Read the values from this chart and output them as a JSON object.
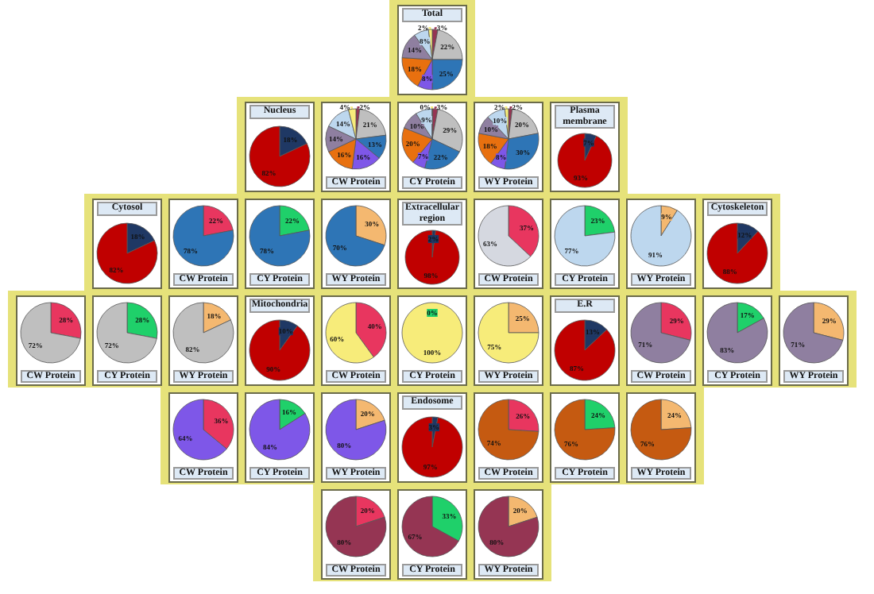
{
  "chart_data": [
    {
      "type": "pie",
      "title": "Total",
      "categories": [
        null,
        null,
        null,
        null,
        null,
        null,
        null,
        null
      ],
      "values": [
        3,
        22,
        25,
        8,
        18,
        14,
        8,
        2
      ],
      "value_labels": [
        "3%",
        "22%",
        "25%",
        "8%",
        "18%",
        "14%",
        "8%",
        "2%"
      ],
      "colors": [
        "#953553",
        "#bfbfbf",
        "#2e75b6",
        "#7e57e8",
        "#e8700f",
        "#8f7fa0",
        "#bdd7ee",
        "#f7ec7a"
      ]
    },
    {
      "type": "pie",
      "title": "Nucleus",
      "categories": [
        null,
        null
      ],
      "values": [
        18,
        82
      ],
      "value_labels": [
        "18%",
        "82%"
      ],
      "colors": [
        "#1f3864",
        "#c00000"
      ]
    },
    {
      "type": "pie",
      "xlabel": "CW Protein",
      "categories": [
        null,
        null,
        null,
        null,
        null,
        null,
        null,
        null
      ],
      "values": [
        2,
        21,
        13,
        16,
        16,
        14,
        14,
        4
      ],
      "value_labels": [
        "2%",
        "21%",
        "13%",
        "16%",
        "16%",
        "14%",
        "14%",
        "4%"
      ],
      "colors": [
        "#953553",
        "#bfbfbf",
        "#2e75b6",
        "#7e57e8",
        "#e8700f",
        "#8f7fa0",
        "#bdd7ee",
        "#f7ec7a"
      ]
    },
    {
      "type": "pie",
      "xlabel": "CY Protein",
      "categories": [
        null,
        null,
        null,
        null,
        null,
        null,
        null,
        null
      ],
      "values": [
        3,
        29,
        22,
        7,
        20,
        10,
        9,
        0
      ],
      "value_labels": [
        "3%",
        "29%",
        "22%",
        "7%",
        "20%",
        "10%",
        "9%",
        "0%"
      ],
      "colors": [
        "#953553",
        "#bfbfbf",
        "#2e75b6",
        "#7e57e8",
        "#e8700f",
        "#8f7fa0",
        "#bdd7ee",
        "#f7ec7a"
      ]
    },
    {
      "type": "pie",
      "xlabel": "WY Protein",
      "categories": [
        null,
        null,
        null,
        null,
        null,
        null,
        null,
        null
      ],
      "values": [
        2,
        20,
        30,
        8,
        18,
        10,
        10,
        2
      ],
      "value_labels": [
        "2%",
        "20%",
        "30%",
        "8%",
        "18%",
        "10%",
        "10%",
        "2%"
      ],
      "colors": [
        "#953553",
        "#bfbfbf",
        "#2e75b6",
        "#7e57e8",
        "#e8700f",
        "#8f7fa0",
        "#bdd7ee",
        "#f7ec7a"
      ]
    },
    {
      "type": "pie",
      "title": "Plasma membrane",
      "categories": [
        null,
        null
      ],
      "values": [
        7,
        93
      ],
      "value_labels": [
        "7%",
        "93%"
      ],
      "colors": [
        "#1f3864",
        "#c00000"
      ]
    },
    {
      "type": "pie",
      "title": "Cytosol",
      "categories": [
        null,
        null
      ],
      "values": [
        18,
        82
      ],
      "value_labels": [
        "18%",
        "82%"
      ],
      "colors": [
        "#1f3864",
        "#c00000"
      ]
    },
    {
      "type": "pie",
      "xlabel": "CW Protein",
      "categories": [
        null,
        null
      ],
      "values": [
        22,
        78
      ],
      "value_labels": [
        "22%",
        "78%"
      ],
      "colors": [
        "#e8365f",
        "#2e75b6"
      ]
    },
    {
      "type": "pie",
      "xlabel": "CY Protein",
      "categories": [
        null,
        null
      ],
      "values": [
        22,
        78
      ],
      "value_labels": [
        "22%",
        "78%"
      ],
      "colors": [
        "#1fd06a",
        "#2e75b6"
      ]
    },
    {
      "type": "pie",
      "xlabel": "WY Protein",
      "categories": [
        null,
        null
      ],
      "values": [
        30,
        70
      ],
      "value_labels": [
        "30%",
        "70%"
      ],
      "colors": [
        "#f4b870",
        "#2e75b6"
      ]
    },
    {
      "type": "pie",
      "title": "Extracellular region",
      "categories": [
        null,
        null
      ],
      "values": [
        2,
        98
      ],
      "value_labels": [
        "2%",
        "98%"
      ],
      "colors": [
        "#1f3864",
        "#c00000"
      ]
    },
    {
      "type": "pie",
      "xlabel": "CW Protein",
      "categories": [
        null,
        null
      ],
      "values": [
        37,
        63
      ],
      "value_labels": [
        "37%",
        "63%"
      ],
      "colors": [
        "#e8365f",
        "#d5d8e0"
      ]
    },
    {
      "type": "pie",
      "xlabel": "CY Protein",
      "categories": [
        null,
        null
      ],
      "values": [
        23,
        77
      ],
      "value_labels": [
        "23%",
        "77%"
      ],
      "colors": [
        "#1fd06a",
        "#bdd7ee"
      ]
    },
    {
      "type": "pie",
      "xlabel": "WY Protein",
      "categories": [
        null,
        null
      ],
      "values": [
        9,
        91
      ],
      "value_labels": [
        "9%",
        "91%"
      ],
      "colors": [
        "#f4b870",
        "#bdd7ee"
      ]
    },
    {
      "type": "pie",
      "title": "Cytoskeleton",
      "categories": [
        null,
        null
      ],
      "values": [
        12,
        88
      ],
      "value_labels": [
        "12%",
        "88%"
      ],
      "colors": [
        "#1f3864",
        "#c00000"
      ]
    },
    {
      "type": "pie",
      "xlabel": "CW Protein",
      "categories": [
        null,
        null
      ],
      "values": [
        28,
        72
      ],
      "value_labels": [
        "28%",
        "72%"
      ],
      "colors": [
        "#e8365f",
        "#bfbfbf"
      ]
    },
    {
      "type": "pie",
      "xlabel": "CY Protein",
      "categories": [
        null,
        null
      ],
      "values": [
        28,
        72
      ],
      "value_labels": [
        "28%",
        "72%"
      ],
      "colors": [
        "#1fd06a",
        "#bfbfbf"
      ]
    },
    {
      "type": "pie",
      "xlabel": "WY Protein",
      "categories": [
        null,
        null
      ],
      "values": [
        18,
        82
      ],
      "value_labels": [
        "18%",
        "82%"
      ],
      "colors": [
        "#f4b870",
        "#bfbfbf"
      ]
    },
    {
      "type": "pie",
      "title": "Mitochondria",
      "categories": [
        null,
        null
      ],
      "values": [
        10,
        90
      ],
      "value_labels": [
        "10%",
        "90%"
      ],
      "colors": [
        "#1f3864",
        "#c00000"
      ]
    },
    {
      "type": "pie",
      "xlabel": "CW Protein",
      "categories": [
        null,
        null
      ],
      "values": [
        40,
        60
      ],
      "value_labels": [
        "40%",
        "60%"
      ],
      "colors": [
        "#e8365f",
        "#f7ec7a"
      ]
    },
    {
      "type": "pie",
      "xlabel": "CY Protein",
      "categories": [
        null,
        null
      ],
      "values": [
        0,
        100
      ],
      "value_labels": [
        "0%",
        "100%"
      ],
      "colors": [
        "#1fd06a",
        "#f7ec7a"
      ]
    },
    {
      "type": "pie",
      "xlabel": "WY Protein",
      "categories": [
        null,
        null
      ],
      "values": [
        25,
        75
      ],
      "value_labels": [
        "25%",
        "75%"
      ],
      "colors": [
        "#f4b870",
        "#f7ec7a"
      ]
    },
    {
      "type": "pie",
      "title": "E.R",
      "categories": [
        null,
        null
      ],
      "values": [
        13,
        87
      ],
      "value_labels": [
        "13%",
        "87%"
      ],
      "colors": [
        "#1f3864",
        "#c00000"
      ]
    },
    {
      "type": "pie",
      "xlabel": "CW Protein",
      "categories": [
        null,
        null
      ],
      "values": [
        29,
        71
      ],
      "value_labels": [
        "29%",
        "71%"
      ],
      "colors": [
        "#e8365f",
        "#8f7fa0"
      ]
    },
    {
      "type": "pie",
      "xlabel": "CY Protein",
      "categories": [
        null,
        null
      ],
      "values": [
        17,
        83
      ],
      "value_labels": [
        "17%",
        "83%"
      ],
      "colors": [
        "#1fd06a",
        "#8f7fa0"
      ]
    },
    {
      "type": "pie",
      "xlabel": "WY Protein",
      "categories": [
        null,
        null
      ],
      "values": [
        29,
        71
      ],
      "value_labels": [
        "29%",
        "71%"
      ],
      "colors": [
        "#f4b870",
        "#8f7fa0"
      ]
    },
    {
      "type": "pie",
      "xlabel": "CW Protein",
      "categories": [
        null,
        null
      ],
      "values": [
        36,
        64
      ],
      "value_labels": [
        "36%",
        "64%"
      ],
      "colors": [
        "#e8365f",
        "#7e57e8"
      ]
    },
    {
      "type": "pie",
      "xlabel": "CY Protein",
      "categories": [
        null,
        null
      ],
      "values": [
        16,
        84
      ],
      "value_labels": [
        "16%",
        "84%"
      ],
      "colors": [
        "#1fd06a",
        "#7e57e8"
      ]
    },
    {
      "type": "pie",
      "xlabel": "WY Protein",
      "categories": [
        null,
        null
      ],
      "values": [
        20,
        80
      ],
      "value_labels": [
        "20%",
        "80%"
      ],
      "colors": [
        "#f4b870",
        "#7e57e8"
      ]
    },
    {
      "type": "pie",
      "title": "Endosome",
      "categories": [
        null,
        null
      ],
      "values": [
        3,
        97
      ],
      "value_labels": [
        "3%",
        "97%"
      ],
      "colors": [
        "#1f3864",
        "#c00000"
      ]
    },
    {
      "type": "pie",
      "xlabel": "CW Protein",
      "categories": [
        null,
        null
      ],
      "values": [
        26,
        74
      ],
      "value_labels": [
        "26%",
        "74%"
      ],
      "colors": [
        "#e8365f",
        "#c55a11"
      ]
    },
    {
      "type": "pie",
      "xlabel": "CY Protein",
      "categories": [
        null,
        null
      ],
      "values": [
        24,
        76
      ],
      "value_labels": [
        "24%",
        "76%"
      ],
      "colors": [
        "#1fd06a",
        "#c55a11"
      ]
    },
    {
      "type": "pie",
      "xlabel": "WY Protein",
      "categories": [
        null,
        null
      ],
      "values": [
        24,
        76
      ],
      "value_labels": [
        "24%",
        "76%"
      ],
      "colors": [
        "#f4b870",
        "#c55a11"
      ]
    },
    {
      "type": "pie",
      "xlabel": "CW Protein",
      "categories": [
        null,
        null
      ],
      "values": [
        20,
        80
      ],
      "value_labels": [
        "20%",
        "80%"
      ],
      "colors": [
        "#e8365f",
        "#953553"
      ]
    },
    {
      "type": "pie",
      "xlabel": "CY Protein",
      "categories": [
        null,
        null
      ],
      "values": [
        33,
        67
      ],
      "value_labels": [
        "33%",
        "67%"
      ],
      "colors": [
        "#1fd06a",
        "#953553"
      ]
    },
    {
      "type": "pie",
      "xlabel": "WY Protein",
      "categories": [
        null,
        null
      ],
      "values": [
        20,
        80
      ],
      "value_labels": [
        "20%",
        "80%"
      ],
      "colors": [
        "#f4b870",
        "#953553"
      ]
    }
  ]
}
